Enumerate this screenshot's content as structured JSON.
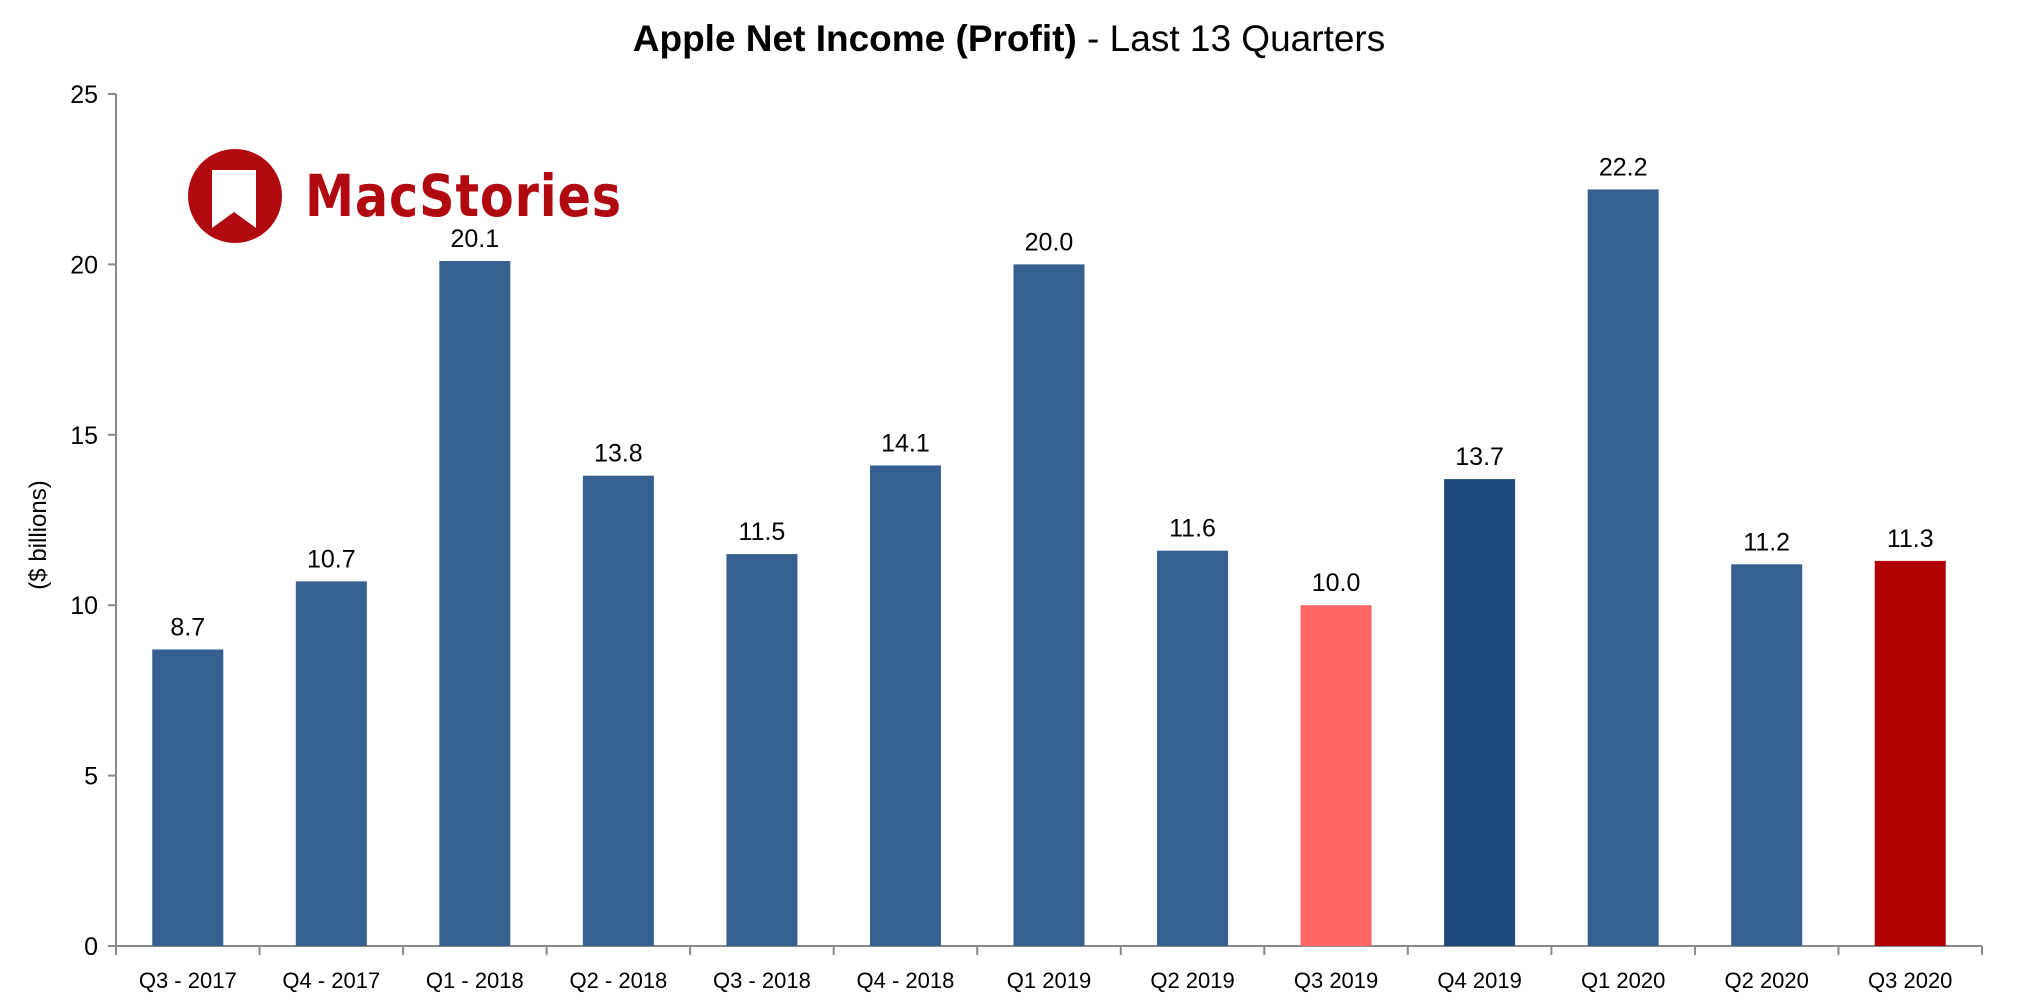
{
  "chart_data": {
    "type": "bar",
    "title_bold": "Apple Net Income (Profit)",
    "title_rest": " - Last 13 Quarters",
    "xlabel": "",
    "ylabel": "($ billions)",
    "ylim": [
      0,
      25
    ],
    "yticks": [
      0,
      5,
      10,
      15,
      20,
      25
    ],
    "grid": false,
    "categories": [
      "Q3 - 2017",
      "Q4 - 2017",
      "Q1 - 2018",
      "Q2 - 2018",
      "Q3 - 2018",
      "Q4 - 2018",
      "Q1 2019",
      "Q2 2019",
      "Q3 2019",
      "Q4 2019",
      "Q1 2020",
      "Q2 2020",
      "Q3 2020"
    ],
    "values": [
      8.7,
      10.7,
      20.1,
      13.8,
      11.5,
      14.1,
      20.0,
      11.6,
      10.0,
      13.7,
      22.2,
      11.2,
      11.3
    ],
    "labels": [
      "8.7",
      "10.7",
      "20.1",
      "13.8",
      "11.5",
      "14.1",
      "20.0",
      "11.6",
      "10.0",
      "13.7",
      "22.2",
      "11.2",
      "11.3"
    ],
    "colors": [
      "#36608f",
      "#36608f",
      "#36608f",
      "#36608f",
      "#36608f",
      "#36608f",
      "#36608f",
      "#36608f",
      "#ff6666",
      "#1f487c",
      "#36608f",
      "#36608f",
      "#b00000"
    ]
  },
  "logo": {
    "text": "MacStories",
    "color": "#b0090f"
  }
}
